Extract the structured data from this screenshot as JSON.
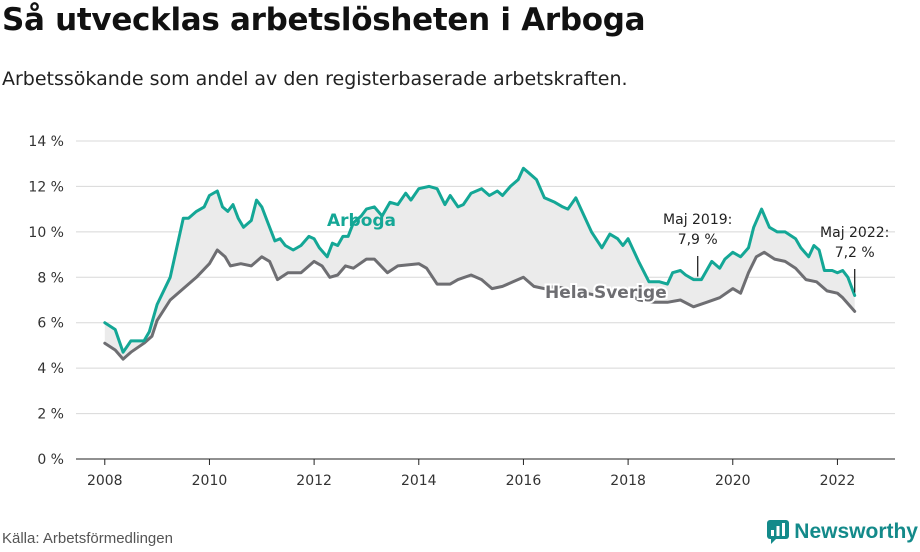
{
  "title": "Så utvecklas arbetslösheten i Arboga",
  "subtitle": "Arbetssökande som andel av den registerbaserade arbetskraften.",
  "source": "Källa: Arbetsförmedlingen",
  "brand": {
    "name": "Newsworthy",
    "icon": "newsworthy-logo-icon",
    "color": "#138a8a"
  },
  "colors": {
    "arboga": "#14a796",
    "sverige": "#6e6e72",
    "fill": "#ebebeb",
    "grid": "#d8d8d8"
  },
  "chart_data": {
    "type": "line",
    "xlim": [
      2007.45,
      2023.1
    ],
    "ylim": [
      0,
      14
    ],
    "y_ticks": [
      {
        "value": 0,
        "label": "0 %"
      },
      {
        "value": 2,
        "label": "2 %"
      },
      {
        "value": 4,
        "label": "4 %"
      },
      {
        "value": 6,
        "label": "6 %"
      },
      {
        "value": 8,
        "label": "8 %"
      },
      {
        "value": 10,
        "label": "10 %"
      },
      {
        "value": 12,
        "label": "12 %"
      },
      {
        "value": 14,
        "label": "14 %"
      }
    ],
    "x_ticks": [
      {
        "value": 2008,
        "label": "2008"
      },
      {
        "value": 2010,
        "label": "2010"
      },
      {
        "value": 2012,
        "label": "2012"
      },
      {
        "value": 2014,
        "label": "2014"
      },
      {
        "value": 2016,
        "label": "2016"
      },
      {
        "value": 2018,
        "label": "2018"
      },
      {
        "value": 2020,
        "label": "2020"
      },
      {
        "value": 2022,
        "label": "2022"
      }
    ],
    "grid": true,
    "series": [
      {
        "name": "Arboga",
        "points": [
          [
            2008.0,
            6.0
          ],
          [
            2008.2,
            5.7
          ],
          [
            2008.35,
            4.7
          ],
          [
            2008.5,
            5.2
          ],
          [
            2008.75,
            5.2
          ],
          [
            2008.85,
            5.6
          ],
          [
            2009.0,
            6.8
          ],
          [
            2009.25,
            8.0
          ],
          [
            2009.5,
            10.6
          ],
          [
            2009.6,
            10.6
          ],
          [
            2009.75,
            10.9
          ],
          [
            2009.9,
            11.1
          ],
          [
            2010.0,
            11.6
          ],
          [
            2010.15,
            11.8
          ],
          [
            2010.25,
            11.1
          ],
          [
            2010.35,
            10.9
          ],
          [
            2010.45,
            11.2
          ],
          [
            2010.55,
            10.6
          ],
          [
            2010.65,
            10.2
          ],
          [
            2010.8,
            10.5
          ],
          [
            2010.9,
            11.4
          ],
          [
            2011.0,
            11.1
          ],
          [
            2011.1,
            10.5
          ],
          [
            2011.25,
            9.6
          ],
          [
            2011.35,
            9.7
          ],
          [
            2011.45,
            9.4
          ],
          [
            2011.6,
            9.2
          ],
          [
            2011.75,
            9.4
          ],
          [
            2011.9,
            9.8
          ],
          [
            2012.0,
            9.7
          ],
          [
            2012.1,
            9.3
          ],
          [
            2012.25,
            8.9
          ],
          [
            2012.35,
            9.5
          ],
          [
            2012.45,
            9.4
          ],
          [
            2012.55,
            9.8
          ],
          [
            2012.65,
            9.8
          ],
          [
            2012.75,
            10.4
          ],
          [
            2012.9,
            10.7
          ],
          [
            2013.0,
            11.0
          ],
          [
            2013.15,
            11.1
          ],
          [
            2013.3,
            10.7
          ],
          [
            2013.45,
            11.3
          ],
          [
            2013.6,
            11.2
          ],
          [
            2013.75,
            11.7
          ],
          [
            2013.85,
            11.4
          ],
          [
            2014.0,
            11.9
          ],
          [
            2014.2,
            12.0
          ],
          [
            2014.35,
            11.9
          ],
          [
            2014.5,
            11.2
          ],
          [
            2014.6,
            11.6
          ],
          [
            2014.75,
            11.1
          ],
          [
            2014.85,
            11.2
          ],
          [
            2015.0,
            11.7
          ],
          [
            2015.2,
            11.9
          ],
          [
            2015.35,
            11.6
          ],
          [
            2015.5,
            11.8
          ],
          [
            2015.6,
            11.6
          ],
          [
            2015.75,
            12.0
          ],
          [
            2015.9,
            12.3
          ],
          [
            2016.0,
            12.8
          ],
          [
            2016.1,
            12.6
          ],
          [
            2016.25,
            12.3
          ],
          [
            2016.4,
            11.5
          ],
          [
            2016.6,
            11.3
          ],
          [
            2016.75,
            11.1
          ],
          [
            2016.85,
            11.0
          ],
          [
            2017.0,
            11.5
          ],
          [
            2017.1,
            11.0
          ],
          [
            2017.3,
            10.0
          ],
          [
            2017.5,
            9.3
          ],
          [
            2017.65,
            9.9
          ],
          [
            2017.8,
            9.7
          ],
          [
            2017.9,
            9.4
          ],
          [
            2018.0,
            9.7
          ],
          [
            2018.2,
            8.7
          ],
          [
            2018.4,
            7.8
          ],
          [
            2018.6,
            7.8
          ],
          [
            2018.75,
            7.7
          ],
          [
            2018.85,
            8.2
          ],
          [
            2019.0,
            8.3
          ],
          [
            2019.1,
            8.1
          ],
          [
            2019.25,
            7.9
          ],
          [
            2019.4,
            7.9
          ],
          [
            2019.5,
            8.3
          ],
          [
            2019.6,
            8.7
          ],
          [
            2019.75,
            8.4
          ],
          [
            2019.85,
            8.8
          ],
          [
            2020.0,
            9.1
          ],
          [
            2020.15,
            8.9
          ],
          [
            2020.3,
            9.3
          ],
          [
            2020.4,
            10.2
          ],
          [
            2020.55,
            11.0
          ],
          [
            2020.7,
            10.2
          ],
          [
            2020.85,
            10.0
          ],
          [
            2021.0,
            10.0
          ],
          [
            2021.2,
            9.7
          ],
          [
            2021.3,
            9.3
          ],
          [
            2021.45,
            8.9
          ],
          [
            2021.55,
            9.4
          ],
          [
            2021.65,
            9.2
          ],
          [
            2021.75,
            8.3
          ],
          [
            2021.9,
            8.3
          ],
          [
            2022.0,
            8.2
          ],
          [
            2022.1,
            8.3
          ],
          [
            2022.2,
            8.0
          ],
          [
            2022.33,
            7.2
          ]
        ]
      },
      {
        "name": "Hela Sverige",
        "points": [
          [
            2008.0,
            5.1
          ],
          [
            2008.2,
            4.8
          ],
          [
            2008.35,
            4.4
          ],
          [
            2008.5,
            4.7
          ],
          [
            2008.75,
            5.1
          ],
          [
            2008.9,
            5.4
          ],
          [
            2009.0,
            6.1
          ],
          [
            2009.25,
            7.0
          ],
          [
            2009.5,
            7.5
          ],
          [
            2009.75,
            8.0
          ],
          [
            2010.0,
            8.6
          ],
          [
            2010.15,
            9.2
          ],
          [
            2010.3,
            8.9
          ],
          [
            2010.4,
            8.5
          ],
          [
            2010.6,
            8.6
          ],
          [
            2010.8,
            8.5
          ],
          [
            2011.0,
            8.9
          ],
          [
            2011.15,
            8.7
          ],
          [
            2011.3,
            7.9
          ],
          [
            2011.5,
            8.2
          ],
          [
            2011.75,
            8.2
          ],
          [
            2012.0,
            8.7
          ],
          [
            2012.15,
            8.5
          ],
          [
            2012.3,
            8.0
          ],
          [
            2012.45,
            8.1
          ],
          [
            2012.6,
            8.5
          ],
          [
            2012.75,
            8.4
          ],
          [
            2013.0,
            8.8
          ],
          [
            2013.15,
            8.8
          ],
          [
            2013.4,
            8.2
          ],
          [
            2013.6,
            8.5
          ],
          [
            2014.0,
            8.6
          ],
          [
            2014.15,
            8.4
          ],
          [
            2014.35,
            7.7
          ],
          [
            2014.6,
            7.7
          ],
          [
            2014.75,
            7.9
          ],
          [
            2015.0,
            8.1
          ],
          [
            2015.2,
            7.9
          ],
          [
            2015.4,
            7.5
          ],
          [
            2015.6,
            7.6
          ],
          [
            2015.8,
            7.8
          ],
          [
            2016.0,
            8.0
          ],
          [
            2016.2,
            7.6
          ],
          [
            2016.4,
            7.5
          ],
          [
            2016.6,
            7.6
          ],
          [
            2016.8,
            7.5
          ],
          [
            2017.0,
            7.4
          ],
          [
            2017.2,
            7.3
          ],
          [
            2017.4,
            7.2
          ],
          [
            2017.6,
            7.4
          ],
          [
            2017.8,
            7.3
          ],
          [
            2018.0,
            7.3
          ],
          [
            2018.2,
            7.0
          ],
          [
            2018.5,
            6.9
          ],
          [
            2018.75,
            6.9
          ],
          [
            2019.0,
            7.0
          ],
          [
            2019.25,
            6.7
          ],
          [
            2019.5,
            6.9
          ],
          [
            2019.75,
            7.1
          ],
          [
            2020.0,
            7.5
          ],
          [
            2020.15,
            7.3
          ],
          [
            2020.3,
            8.2
          ],
          [
            2020.45,
            8.9
          ],
          [
            2020.6,
            9.1
          ],
          [
            2020.8,
            8.8
          ],
          [
            2021.0,
            8.7
          ],
          [
            2021.2,
            8.4
          ],
          [
            2021.4,
            7.9
          ],
          [
            2021.6,
            7.8
          ],
          [
            2021.8,
            7.4
          ],
          [
            2022.0,
            7.3
          ],
          [
            2022.1,
            7.1
          ],
          [
            2022.33,
            6.5
          ]
        ]
      }
    ],
    "annotations": [
      {
        "x": 2019.33,
        "y": 7.9,
        "lines": [
          "Maj 2019:",
          "7,9 %"
        ]
      },
      {
        "x": 2022.33,
        "y": 7.2,
        "lines": [
          "Maj 2022:",
          "7,2 %"
        ]
      }
    ]
  }
}
